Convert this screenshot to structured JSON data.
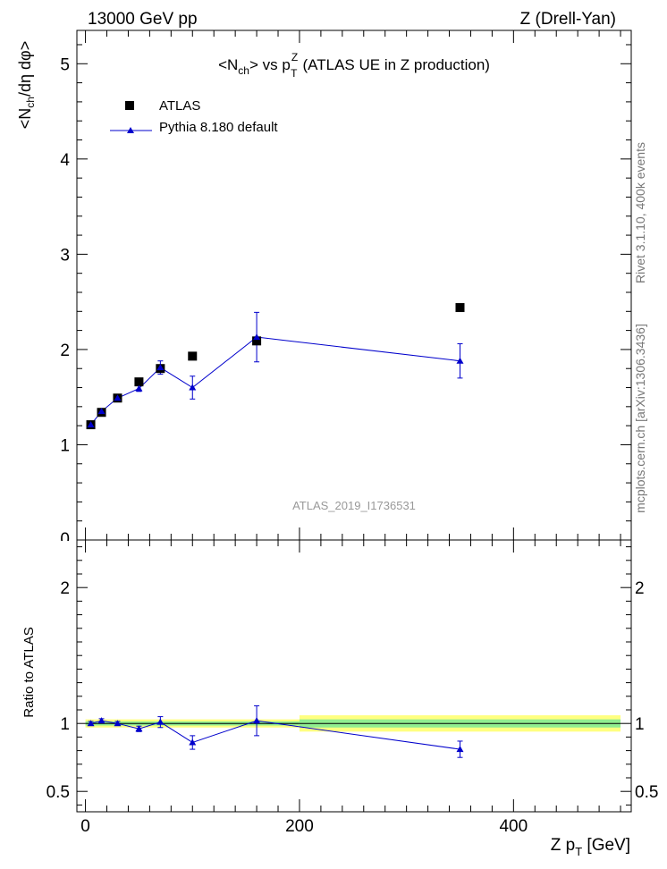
{
  "header": {
    "left": "13000 GeV pp",
    "right": "Z (Drell-Yan)"
  },
  "title": {
    "main": "<N",
    "main_sub": "ch",
    "main_after": "> vs p",
    "main_sup": "Z",
    "main_sub2": "T",
    "rest": "(ATLAS UE in Z production)"
  },
  "side_labels": {
    "rivet": "Rivet 3.1.10,  400k events",
    "mcplots": "mcplots.cern.ch [arXiv:1306.3436]"
  },
  "watermark": "ATLAS_2019_I1736531",
  "colors": {
    "data": "#000000",
    "mc": "#0000cc",
    "band_inner": "#90ee90",
    "band_outer": "#ffff80"
  },
  "chart_data": [
    {
      "type": "scatter",
      "panel": "main",
      "ylabel": "<N_ch/dη dφ>",
      "xlim": [
        -8,
        510
      ],
      "ylim": [
        0,
        5.35
      ],
      "yticks": [
        1,
        2,
        3,
        4,
        5
      ],
      "yticks_clipped": [
        "0"
      ],
      "legend_position": "top-left",
      "series": [
        {
          "name": "ATLAS",
          "marker": "square",
          "x": [
            5,
            15,
            30,
            50,
            70,
            100,
            160,
            350
          ],
          "y": [
            1.21,
            1.34,
            1.49,
            1.66,
            1.8,
            1.93,
            2.09,
            2.44
          ]
        },
        {
          "name": "Pythia 8.180 default",
          "marker": "triangle",
          "x": [
            5,
            15,
            30,
            50,
            70,
            100,
            160,
            350
          ],
          "y": [
            1.21,
            1.35,
            1.49,
            1.59,
            1.81,
            1.6,
            2.13,
            1.88
          ],
          "yerr": [
            0.02,
            0.02,
            0.02,
            0.03,
            0.07,
            0.12,
            0.26,
            0.18
          ]
        }
      ]
    },
    {
      "type": "line",
      "panel": "ratio",
      "ylabel": "Ratio to ATLAS",
      "xlabel": "Z p_T [GeV]",
      "xlim": [
        -8,
        510
      ],
      "ylim": [
        0.35,
        2.35
      ],
      "yticks": [
        "0.5",
        "1",
        "2"
      ],
      "xticks": [
        "0",
        "200",
        "400"
      ],
      "bands": [
        {
          "x": [
            0,
            200
          ],
          "inner": [
            0.985,
            1.015
          ],
          "outer": [
            0.97,
            1.03
          ]
        },
        {
          "x": [
            200,
            500
          ],
          "inner": [
            0.97,
            1.03
          ],
          "outer": [
            0.94,
            1.06
          ]
        }
      ],
      "series": [
        {
          "name": "Pythia 8.180 default",
          "x": [
            5,
            15,
            30,
            50,
            70,
            100,
            160,
            350
          ],
          "y": [
            1.0,
            1.02,
            1.0,
            0.96,
            1.01,
            0.86,
            1.02,
            0.81
          ],
          "yerr": [
            0.015,
            0.015,
            0.015,
            0.02,
            0.04,
            0.05,
            0.11,
            0.06
          ]
        }
      ]
    }
  ]
}
